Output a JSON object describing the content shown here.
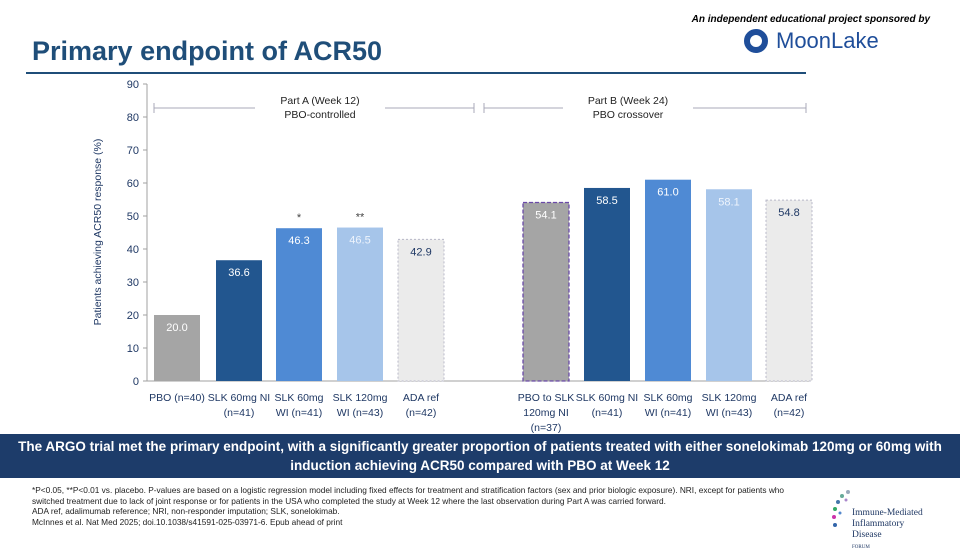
{
  "header": {
    "title": "Primary endpoint of ACR50",
    "sponsor_text": "An independent educational project sponsored by",
    "sponsor_logo": "MoonLake"
  },
  "chart_data": {
    "type": "bar",
    "ylabel": "Patients achieving ACR50 response (%)",
    "ylim": [
      0,
      90
    ],
    "yticks": [
      0,
      10,
      20,
      30,
      40,
      50,
      60,
      70,
      80,
      90
    ],
    "grid": false,
    "groups": [
      {
        "label_line1": "Part A (Week 12)",
        "label_line2": "PBO-controlled",
        "categories": [
          [
            "PBO (n=40)"
          ],
          [
            "SLK 60mg NI",
            "(n=41)"
          ],
          [
            "SLK 60mg",
            "WI (n=41)"
          ],
          [
            "SLK 120mg",
            "WI (n=43)"
          ],
          [
            "ADA ref",
            "(n=42)"
          ]
        ],
        "values": [
          20.0,
          36.6,
          46.3,
          46.5,
          42.9
        ],
        "labels": [
          "20.0",
          "36.6",
          "46.3",
          "46.5",
          "42.9"
        ],
        "significance": [
          "",
          "",
          "*",
          "**",
          ""
        ]
      },
      {
        "label_line1": "Part B (Week 24)",
        "label_line2": "PBO crossover",
        "categories": [
          [
            "PBO to SLK",
            "120mg NI",
            "(n=37)"
          ],
          [
            "SLK 60mg NI",
            "(n=41)"
          ],
          [
            "SLK 60mg",
            "WI (n=41)"
          ],
          [
            "SLK 120mg",
            "WI (n=43)"
          ],
          [
            "ADA ref",
            "(n=42)"
          ]
        ],
        "values": [
          54.1,
          58.5,
          61.0,
          58.1,
          54.8
        ],
        "labels": [
          "54.1",
          "58.5",
          "61.0",
          "58.1",
          "54.8"
        ],
        "significance": [
          "",
          "",
          "",
          "",
          ""
        ]
      }
    ],
    "colors": [
      "#a5a5a5",
      "#22568f",
      "#4f8ad4",
      "#a6c5ea",
      "#ebebeb"
    ]
  },
  "banner": "The ARGO trial met the primary endpoint, with a significantly greater proportion of patients treated with either sonelokimab 120mg or 60mg with induction achieving ACR50 compared with PBO at Week 12",
  "footnotes": [
    "*P<0.05, **P<0.01 vs. placebo. P-values are based on a logistic regression model including fixed effects for treatment and stratification factors (sex and prior biologic exposure). NRI, except for patients who switched treatment due to lack of joint response or for patients in the USA who completed the study at Week 12 where the last observation during Part A was carried forward.",
    "ADA ref, adalimumab reference; NRI, non-responder imputation; SLK, sonelokimab.",
    "McInnes et al. Nat Med 2025; doi.10.1038/s41591-025-03971-6. Epub ahead of print"
  ],
  "forum_logo": {
    "line1": "Immune-Mediated",
    "line2": "Inflammatory Disease",
    "line3": "FORUM"
  }
}
